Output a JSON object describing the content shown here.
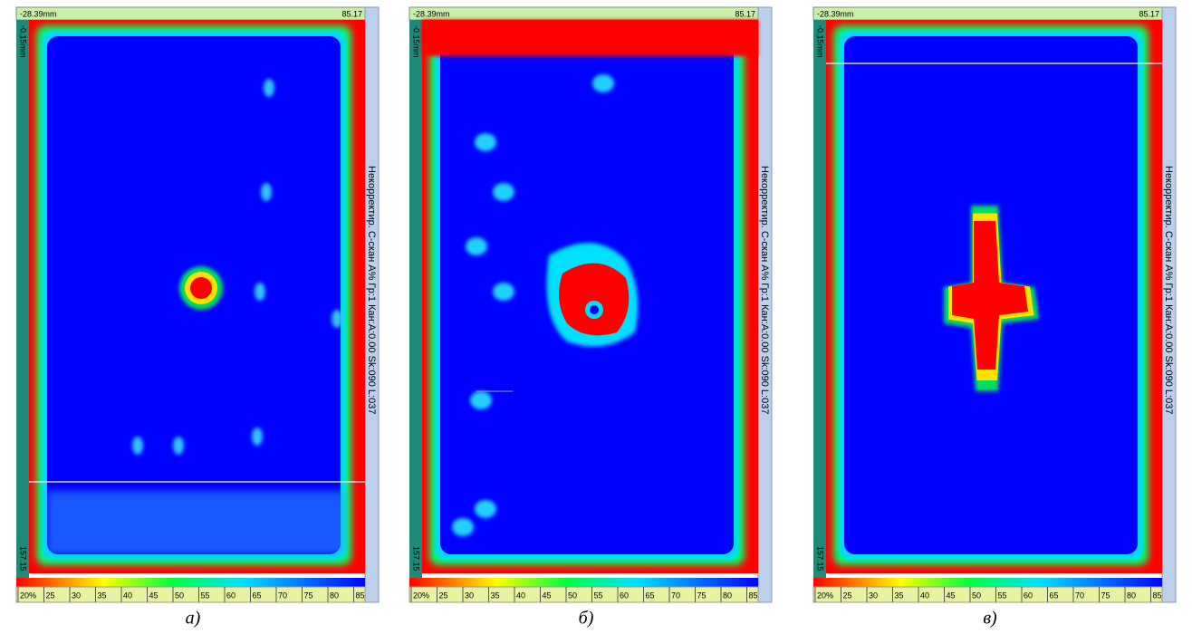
{
  "panels": [
    {
      "top_left": "-28.39mm",
      "top_right": "85.17",
      "left_top": "-0.15mm",
      "left_bottom": "157.15",
      "side_label": "Некорректир. C-скан A% Гр:1 Кан:A:0.00 Sk:090 L:037",
      "scale_labels": [
        "20%",
        "25",
        "30",
        "35",
        "40",
        "45",
        "50",
        "55",
        "60",
        "65",
        "70",
        "75",
        "80",
        "85"
      ],
      "caption": "а)"
    },
    {
      "top_left": "-28.39mm",
      "top_right": "85.17",
      "left_top": "-0.15mm",
      "left_bottom": "157.15",
      "side_label": "Некорректир. C-скан A% Гр:1 Кан:A:0.00 Sk:090 L:037",
      "scale_labels": [
        "20%",
        "25",
        "30",
        "35",
        "40",
        "45",
        "50",
        "55",
        "60",
        "65",
        "70",
        "75",
        "80",
        "85"
      ],
      "caption": "б)"
    },
    {
      "top_left": "-28.39mm",
      "top_right": "85.17",
      "left_top": "-0.15mm",
      "left_bottom": "157.15",
      "side_label": "Некорректир. C-скан A% Гр:1 Кан:A:0.00 Sk:090 L:037",
      "scale_labels": [
        "20%",
        "25",
        "30",
        "35",
        "40",
        "45",
        "50",
        "55",
        "60",
        "65",
        "70",
        "75",
        "80",
        "85"
      ],
      "caption": "в)"
    }
  ]
}
